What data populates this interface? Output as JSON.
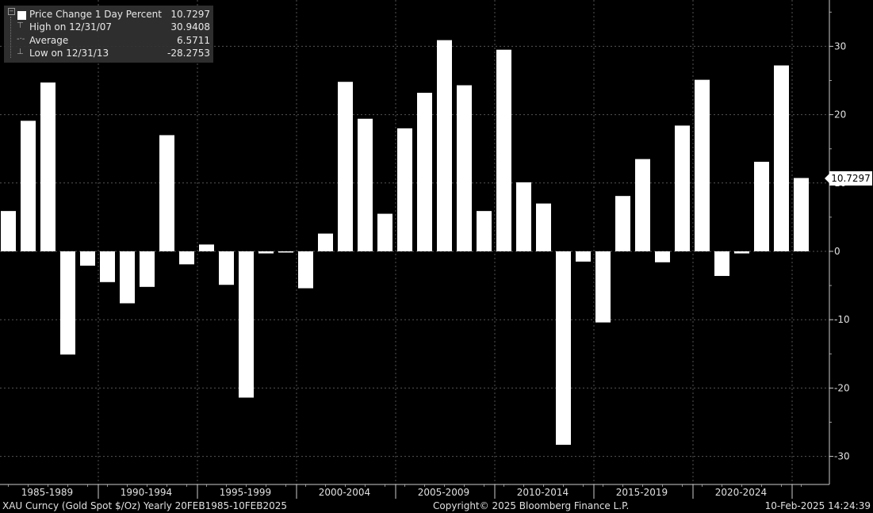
{
  "chart_data": {
    "type": "bar",
    "title": "",
    "categories": [
      "1985",
      "1986",
      "1987",
      "1988",
      "1989",
      "1990",
      "1991",
      "1992",
      "1993",
      "1994",
      "1995",
      "1996",
      "1997",
      "1998",
      "1999",
      "2000",
      "2001",
      "2002",
      "2003",
      "2004",
      "2005",
      "2006",
      "2007",
      "2008",
      "2009",
      "2010",
      "2011",
      "2012",
      "2013",
      "2014",
      "2015",
      "2016",
      "2017",
      "2018",
      "2019",
      "2020",
      "2021",
      "2022",
      "2023",
      "2024",
      "2025"
    ],
    "series": [
      {
        "name": "Price Change 1 Day Percent",
        "values": [
          5.9,
          19.1,
          24.7,
          -15.1,
          -2.1,
          -4.5,
          -7.6,
          -5.2,
          17.0,
          -1.9,
          1.0,
          -4.9,
          -21.4,
          -0.3,
          0.0,
          -5.4,
          2.6,
          24.8,
          19.4,
          5.5,
          18.0,
          23.2,
          30.9,
          24.3,
          5.9,
          29.5,
          10.1,
          7.0,
          -28.3,
          -1.5,
          -10.4,
          8.1,
          13.5,
          -1.6,
          18.4,
          25.1,
          -3.6,
          -0.3,
          13.1,
          27.2,
          10.7297
        ]
      }
    ],
    "x_group_labels": [
      "1985-1989",
      "1990-1994",
      "1995-1999",
      "2000-2004",
      "2005-2009",
      "2010-2014",
      "2015-2019",
      "2020-2024"
    ],
    "y_ticks": [
      30,
      20,
      10,
      0,
      -10,
      -20,
      -30
    ],
    "ylim": [
      -34,
      36
    ],
    "grid": true,
    "legend_position": "top-left",
    "colors": {
      "bar": "#ffffff",
      "background": "#000000",
      "grid": "#555555"
    }
  },
  "legend": {
    "rows": [
      {
        "label": "Price Change 1 Day Percent",
        "value": "10.7297"
      },
      {
        "label": "High on 12/31/07",
        "value": "30.9408"
      },
      {
        "label": "Average",
        "value": "6.5711"
      },
      {
        "label": "Low on 12/31/13",
        "value": "-28.2753"
      }
    ]
  },
  "last_value_tag": "10.7297",
  "footer": {
    "left": "XAU Curncy (Gold Spot  $/Oz)  Yearly 20FEB1985-10FEB2025",
    "center": "Copyright© 2025 Bloomberg Finance L.P.",
    "right": "10-Feb-2025 14:24:39"
  }
}
